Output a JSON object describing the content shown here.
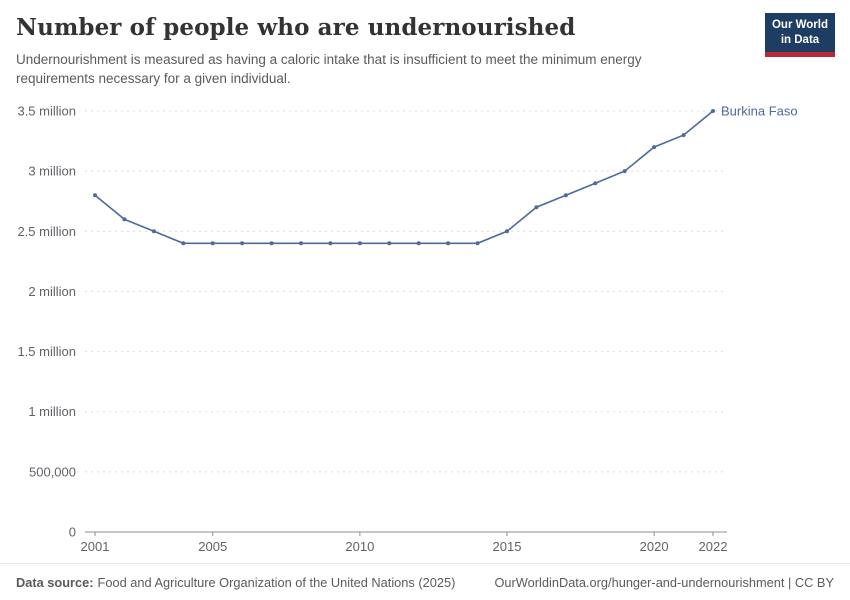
{
  "header": {
    "title": "Number of people who are undernourished",
    "subtitle": "Undernourishment is measured as having a caloric intake that is insufficient to meet the minimum energy requirements necessary for a given individual.",
    "logo": {
      "line1": "Our World",
      "line2": "in Data",
      "bg_color": "#1d3d63",
      "accent_color": "#b9273c"
    }
  },
  "chart_data": {
    "type": "line",
    "title": "Number of people who are undernourished",
    "x": [
      2001,
      2002,
      2003,
      2004,
      2005,
      2006,
      2007,
      2008,
      2009,
      2010,
      2011,
      2012,
      2013,
      2014,
      2015,
      2016,
      2017,
      2018,
      2019,
      2020,
      2021,
      2022
    ],
    "series": [
      {
        "name": "Burkina Faso",
        "color": "#4c6a9c",
        "values": [
          2800000,
          2600000,
          2500000,
          2400000,
          2400000,
          2400000,
          2400000,
          2400000,
          2400000,
          2400000,
          2400000,
          2400000,
          2400000,
          2400000,
          2500000,
          2700000,
          2800000,
          2900000,
          3000000,
          3200000,
          3300000,
          3500000
        ]
      }
    ],
    "xlim": [
      2001,
      2022
    ],
    "ylim": [
      0,
      3500000
    ],
    "x_ticks": [
      2001,
      2005,
      2010,
      2015,
      2020,
      2022
    ],
    "y_ticks": [
      {
        "value": 0,
        "label": "0"
      },
      {
        "value": 500000,
        "label": "500,000"
      },
      {
        "value": 1000000,
        "label": "1 million"
      },
      {
        "value": 1500000,
        "label": "1.5 million"
      },
      {
        "value": 2000000,
        "label": "2 million"
      },
      {
        "value": 2500000,
        "label": "2.5 million"
      },
      {
        "value": 3000000,
        "label": "3 million"
      },
      {
        "value": 3500000,
        "label": "3.5 million"
      }
    ],
    "grid": "horizontal-dashed",
    "legend": "end-of-line-label",
    "axis_color": "#8f8f8f",
    "grid_color": "#dcdcdc",
    "tick_label_color": "#5f6368"
  },
  "footer": {
    "datasource_label": "Data source:",
    "datasource": "Food and Agriculture Organization of the United Nations (2025)",
    "link": "OurWorldinData.org/hunger-and-undernourishment | CC BY"
  }
}
